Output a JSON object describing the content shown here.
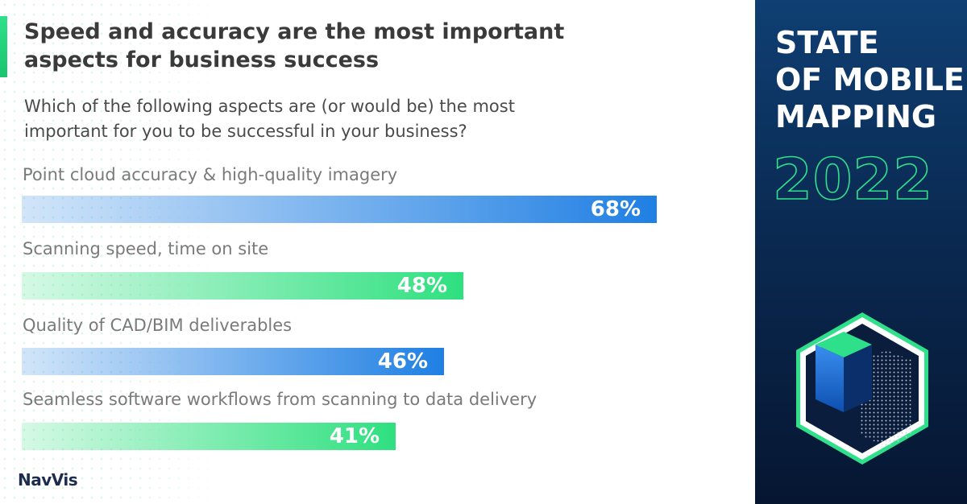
{
  "chart_data": {
    "type": "bar",
    "orientation": "horizontal",
    "title": "Speed and accuracy are the most important aspects for business success",
    "subtitle": "Which of the following aspects are (or would be) the most important for you to be successful in your business?",
    "categories": [
      "Point cloud accuracy & high-quality imagery",
      "Scanning speed, time on site",
      "Quality of CAD/BIM deliverables",
      "Seamless software workflows from scanning to data delivery"
    ],
    "values": [
      68,
      48,
      46,
      41
    ],
    "value_labels": [
      "68%",
      "48%",
      "46%",
      "41%"
    ],
    "colors": [
      "#1f7fe3",
      "#2ee07f",
      "#1f7fe3",
      "#2ee07f"
    ]
  },
  "sidebar": {
    "title_lines": [
      "STATE",
      "OF MOBILE",
      "MAPPING"
    ],
    "year": "2022"
  },
  "logo": "NavVis"
}
